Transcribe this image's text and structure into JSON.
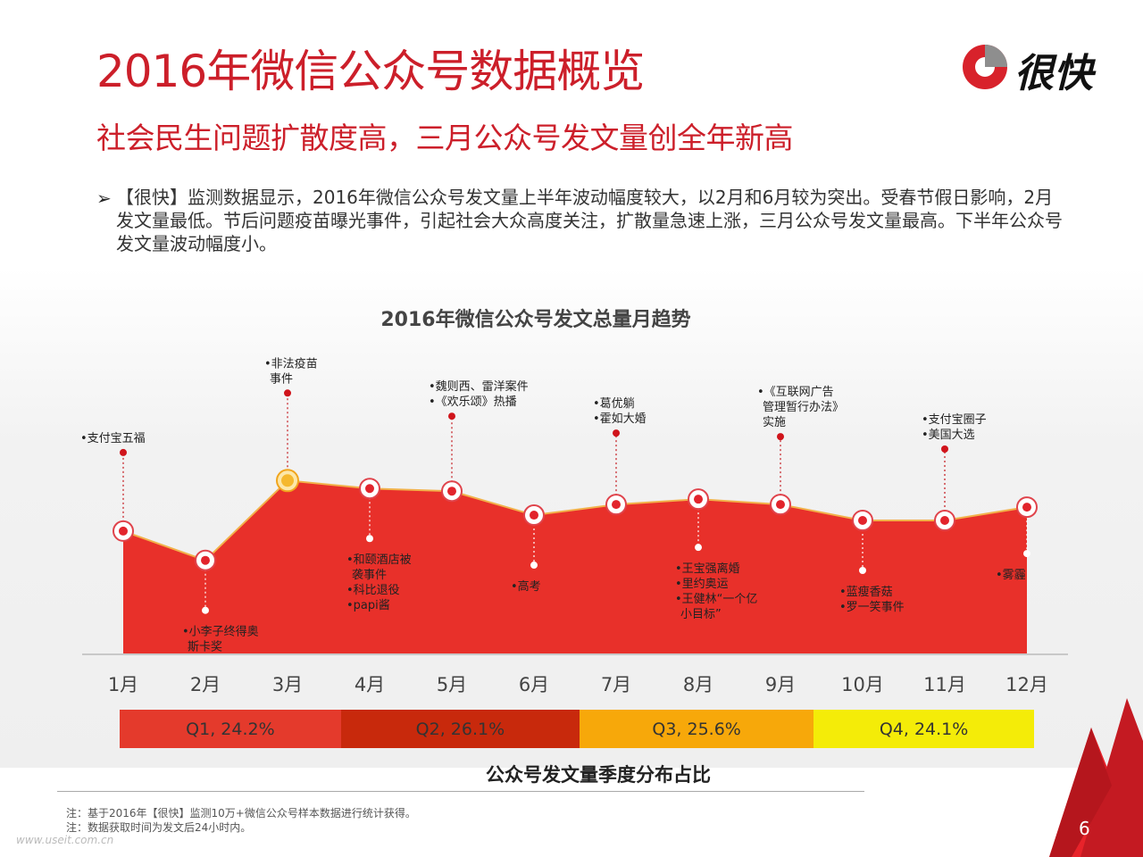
{
  "page": {
    "title": "2016年微信公众号数据概览",
    "subtitle": "社会民生问题扩散度高，三月公众号发文量创全年新高",
    "logo_text": "很快",
    "bullet_icon": "➢",
    "paragraph": "【很快】监测数据显示，2016年微信公众号发文量上半年波动幅度较大，以2月和6月较为突出。受春节假日影响，2月发文量最低。节后问题疫苗曝光事件，引起社会大众高度关注，扩散量急速上涨，三月公众号发文量最高。下半年公众号发文量波动幅度小。",
    "page_number": "6",
    "watermark": "www.useit.com.cn",
    "notes": [
      "注：基于2016年【很快】监测10万+微信公众号样本数据进行统计获得。",
      "注：数据获取时间为发文后24小时内。"
    ],
    "colors": {
      "brand_red": "#cc1f2a",
      "area": "#e8302a",
      "highlight": "#f5b82e"
    }
  },
  "chart_data": [
    {
      "type": "area",
      "title": "2016年微信公众号发文总量月趋势",
      "categories": [
        "1月",
        "2月",
        "3月",
        "4月",
        "5月",
        "6月",
        "7月",
        "8月",
        "9月",
        "10月",
        "11月",
        "12月"
      ],
      "values": [
        0.46,
        0.35,
        0.65,
        0.62,
        0.61,
        0.52,
        0.56,
        0.58,
        0.56,
        0.5,
        0.5,
        0.55
      ],
      "highlight_index": 2,
      "annotations": [
        {
          "month": "1月",
          "position": "above",
          "lines": [
            "•支付宝五福"
          ]
        },
        {
          "month": "2月",
          "position": "below",
          "lines": [
            "•小李子终得奥",
            "斯卡奖"
          ]
        },
        {
          "month": "3月",
          "position": "above",
          "lines": [
            "•非法疫苗",
            "事件"
          ]
        },
        {
          "month": "4月",
          "position": "below",
          "lines": [
            "•和颐酒店被",
            "袭事件",
            "•科比退役",
            "•papi酱"
          ]
        },
        {
          "month": "5月",
          "position": "above",
          "lines": [
            "•魏则西、雷洋案件",
            "•《欢乐颂》热播"
          ]
        },
        {
          "month": "6月",
          "position": "below",
          "lines": [
            "•高考"
          ]
        },
        {
          "month": "7月",
          "position": "above",
          "lines": [
            "•葛优躺",
            "•霍如大婚"
          ]
        },
        {
          "month": "8月",
          "position": "below",
          "lines": [
            "•王宝强离婚",
            "•里约奥运",
            "•王健林“一个亿",
            "小目标”"
          ]
        },
        {
          "month": "9月",
          "position": "above",
          "lines": [
            "•《互联网广告",
            "管理暂行办法》",
            "实施"
          ]
        },
        {
          "month": "10月",
          "position": "below",
          "lines": [
            "•蓝瘦香菇",
            "•罗一笑事件"
          ]
        },
        {
          "month": "11月",
          "position": "above",
          "lines": [
            "•支付宝圈子",
            "•美国大选"
          ]
        },
        {
          "month": "12月",
          "position": "below",
          "lines": [
            "•雾霾"
          ]
        }
      ]
    },
    {
      "type": "bar",
      "title": "公众号发文量季度分布占比",
      "categories": [
        "Q1",
        "Q2",
        "Q3",
        "Q4"
      ],
      "values": [
        24.2,
        26.1,
        25.6,
        24.1
      ],
      "labels": [
        "Q1, 24.2%",
        "Q2, 26.1%",
        "Q3, 25.6%",
        "Q4, 24.1%"
      ],
      "colors": [
        "#e43a2c",
        "#c8290c",
        "#f7a80a",
        "#f4ec08"
      ]
    }
  ]
}
